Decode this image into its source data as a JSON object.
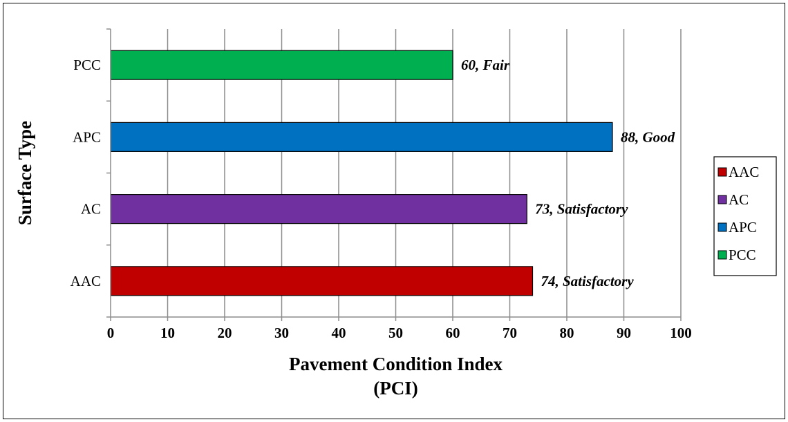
{
  "chart_data": {
    "type": "bar",
    "orientation": "horizontal",
    "categories": [
      "AAC",
      "AC",
      "APC",
      "PCC"
    ],
    "values": [
      74,
      73,
      88,
      60
    ],
    "data_labels": [
      "74, Satisfactory",
      "73, Satisfactory",
      "88, Good",
      "60, Fair"
    ],
    "colors": [
      "#c00000",
      "#7030a0",
      "#0070c0",
      "#00b050"
    ],
    "xlabel_lines": [
      "Pavement Condition Index",
      "(PCI)"
    ],
    "ylabel": "Surface Type",
    "xlim": [
      0,
      100
    ],
    "xticks": [
      0,
      10,
      20,
      30,
      40,
      50,
      60,
      70,
      80,
      90,
      100
    ],
    "grid": "vertical",
    "legend": {
      "position": "right",
      "entries": [
        "AAC",
        "AC",
        "APC",
        "PCC"
      ]
    }
  }
}
